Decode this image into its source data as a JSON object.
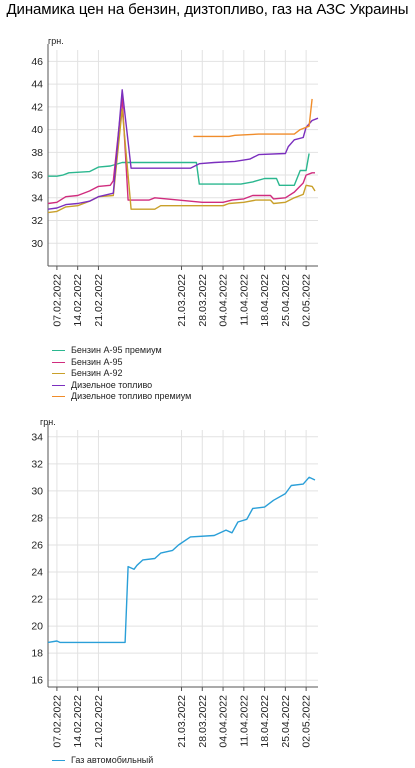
{
  "page": {
    "title": "Динамика цен на бензин, дизтопливо, газ на АЗС Украины"
  },
  "chart_data": [
    {
      "type": "line",
      "unit_label": "грн.",
      "ylim": [
        28,
        47
      ],
      "yticks": [
        30,
        32,
        34,
        36,
        38,
        40,
        42,
        44,
        46
      ],
      "xlim": [
        "2022-02-04",
        "2022-05-06"
      ],
      "xticks": [
        "07.02.2022",
        "14.02.2022",
        "21.02.2022",
        "21.03.2022",
        "28.03.2022",
        "04.04.2022",
        "11.04.2022",
        "18.04.2022",
        "25.04.2022",
        "02.05.2022"
      ],
      "grid": true,
      "legend": "bottom",
      "series": [
        {
          "name": "Бензин А-95 премиум",
          "color": "#2bb78f",
          "points": [
            [
              "2022-02-04",
              35.9
            ],
            [
              "2022-02-07",
              35.9
            ],
            [
              "2022-02-09",
              36.0
            ],
            [
              "2022-02-11",
              36.2
            ],
            [
              "2022-02-18",
              36.3
            ],
            [
              "2022-02-21",
              36.7
            ],
            [
              "2022-02-25",
              36.8
            ],
            [
              "2022-03-01",
              37.1
            ],
            [
              "2022-03-26",
              37.1
            ],
            [
              "2022-03-27",
              35.2
            ],
            [
              "2022-04-10",
              35.2
            ],
            [
              "2022-04-14",
              35.4
            ],
            [
              "2022-04-18",
              35.7
            ],
            [
              "2022-04-22",
              35.7
            ],
            [
              "2022-04-23",
              35.1
            ],
            [
              "2022-04-28",
              35.1
            ],
            [
              "2022-04-30",
              36.4
            ],
            [
              "2022-05-02",
              36.4
            ],
            [
              "2022-05-03",
              37.9
            ]
          ]
        },
        {
          "name": "Бензин А-95",
          "color": "#d02c7e",
          "points": [
            [
              "2022-02-04",
              33.5
            ],
            [
              "2022-02-07",
              33.6
            ],
            [
              "2022-02-10",
              34.1
            ],
            [
              "2022-02-14",
              34.2
            ],
            [
              "2022-02-18",
              34.6
            ],
            [
              "2022-02-21",
              35.0
            ],
            [
              "2022-02-25",
              35.1
            ],
            [
              "2022-02-26",
              35.5
            ],
            [
              "2022-03-01",
              42.8
            ],
            [
              "2022-03-03",
              33.8
            ],
            [
              "2022-03-10",
              33.8
            ],
            [
              "2022-03-12",
              34.0
            ],
            [
              "2022-03-28",
              33.6
            ],
            [
              "2022-04-04",
              33.6
            ],
            [
              "2022-04-07",
              33.8
            ],
            [
              "2022-04-11",
              33.9
            ],
            [
              "2022-04-14",
              34.2
            ],
            [
              "2022-04-20",
              34.2
            ],
            [
              "2022-04-21",
              33.9
            ],
            [
              "2022-04-25",
              34.0
            ],
            [
              "2022-04-28",
              34.5
            ],
            [
              "2022-05-01",
              35.3
            ],
            [
              "2022-05-02",
              36.0
            ],
            [
              "2022-05-04",
              36.2
            ],
            [
              "2022-05-05",
              36.2
            ]
          ]
        },
        {
          "name": "Бензин А-92",
          "color": "#c9a02a",
          "points": [
            [
              "2022-02-04",
              32.7
            ],
            [
              "2022-02-07",
              32.8
            ],
            [
              "2022-02-10",
              33.2
            ],
            [
              "2022-02-14",
              33.3
            ],
            [
              "2022-02-18",
              33.7
            ],
            [
              "2022-02-21",
              34.1
            ],
            [
              "2022-02-26",
              34.2
            ],
            [
              "2022-03-01",
              41.8
            ],
            [
              "2022-03-04",
              33.0
            ],
            [
              "2022-03-12",
              33.0
            ],
            [
              "2022-03-14",
              33.3
            ],
            [
              "2022-04-04",
              33.3
            ],
            [
              "2022-04-06",
              33.5
            ],
            [
              "2022-04-11",
              33.6
            ],
            [
              "2022-04-15",
              33.8
            ],
            [
              "2022-04-20",
              33.8
            ],
            [
              "2022-04-21",
              33.5
            ],
            [
              "2022-04-25",
              33.6
            ],
            [
              "2022-04-28",
              34.0
            ],
            [
              "2022-05-01",
              34.3
            ],
            [
              "2022-05-02",
              35.1
            ],
            [
              "2022-05-04",
              35.0
            ],
            [
              "2022-05-05",
              34.6
            ]
          ]
        },
        {
          "name": "Дизельное топливо",
          "color": "#7b2fbe",
          "points": [
            [
              "2022-02-04",
              33.0
            ],
            [
              "2022-02-07",
              33.1
            ],
            [
              "2022-02-10",
              33.4
            ],
            [
              "2022-02-14",
              33.5
            ],
            [
              "2022-02-18",
              33.7
            ],
            [
              "2022-02-21",
              34.1
            ],
            [
              "2022-02-26",
              34.4
            ],
            [
              "2022-03-01",
              43.5
            ],
            [
              "2022-03-04",
              36.6
            ],
            [
              "2022-03-24",
              36.6
            ],
            [
              "2022-03-27",
              37.0
            ],
            [
              "2022-04-01",
              37.1
            ],
            [
              "2022-04-08",
              37.2
            ],
            [
              "2022-04-13",
              37.4
            ],
            [
              "2022-04-16",
              37.8
            ],
            [
              "2022-04-25",
              37.9
            ],
            [
              "2022-04-26",
              38.5
            ],
            [
              "2022-04-28",
              39.1
            ],
            [
              "2022-05-01",
              39.3
            ],
            [
              "2022-05-02",
              40.2
            ],
            [
              "2022-05-04",
              40.8
            ],
            [
              "2022-05-06",
              41.0
            ]
          ]
        },
        {
          "name": "Дизельное топливо премиум",
          "color": "#f08c2a",
          "points": [
            [
              "2022-03-25",
              39.4
            ],
            [
              "2022-04-06",
              39.4
            ],
            [
              "2022-04-08",
              39.5
            ],
            [
              "2022-04-16",
              39.6
            ],
            [
              "2022-04-28",
              39.6
            ],
            [
              "2022-04-30",
              40.0
            ],
            [
              "2022-05-03",
              40.3
            ],
            [
              "2022-05-04",
              42.7
            ]
          ]
        }
      ]
    },
    {
      "type": "line",
      "unit_label": "грн.",
      "ylim": [
        15.5,
        34.5
      ],
      "yticks": [
        16,
        18,
        20,
        22,
        24,
        26,
        28,
        30,
        32,
        34
      ],
      "xlim": [
        "2022-02-04",
        "2022-05-06"
      ],
      "xticks": [
        "07.02.2022",
        "14.02.2022",
        "21.02.2022",
        "21.03.2022",
        "28.03.2022",
        "04.04.2022",
        "11.04.2022",
        "18.04.2022",
        "25.04.2022",
        "02.05.2022"
      ],
      "grid": true,
      "legend": "bottom",
      "series": [
        {
          "name": "Газ автомобильный",
          "color": "#2a9fd8",
          "points": [
            [
              "2022-02-04",
              18.8
            ],
            [
              "2022-02-07",
              18.9
            ],
            [
              "2022-02-08",
              18.8
            ],
            [
              "2022-03-02",
              18.8
            ],
            [
              "2022-03-03",
              24.4
            ],
            [
              "2022-03-05",
              24.2
            ],
            [
              "2022-03-06",
              24.5
            ],
            [
              "2022-03-08",
              24.9
            ],
            [
              "2022-03-12",
              25.0
            ],
            [
              "2022-03-14",
              25.4
            ],
            [
              "2022-03-18",
              25.6
            ],
            [
              "2022-03-20",
              26.0
            ],
            [
              "2022-03-24",
              26.6
            ],
            [
              "2022-04-01",
              26.7
            ],
            [
              "2022-04-05",
              27.1
            ],
            [
              "2022-04-07",
              26.9
            ],
            [
              "2022-04-09",
              27.7
            ],
            [
              "2022-04-12",
              27.9
            ],
            [
              "2022-04-14",
              28.7
            ],
            [
              "2022-04-18",
              28.8
            ],
            [
              "2022-04-21",
              29.3
            ],
            [
              "2022-04-25",
              29.8
            ],
            [
              "2022-04-27",
              30.4
            ],
            [
              "2022-05-01",
              30.5
            ],
            [
              "2022-05-03",
              31.0
            ],
            [
              "2022-05-05",
              30.8
            ]
          ]
        }
      ]
    }
  ]
}
